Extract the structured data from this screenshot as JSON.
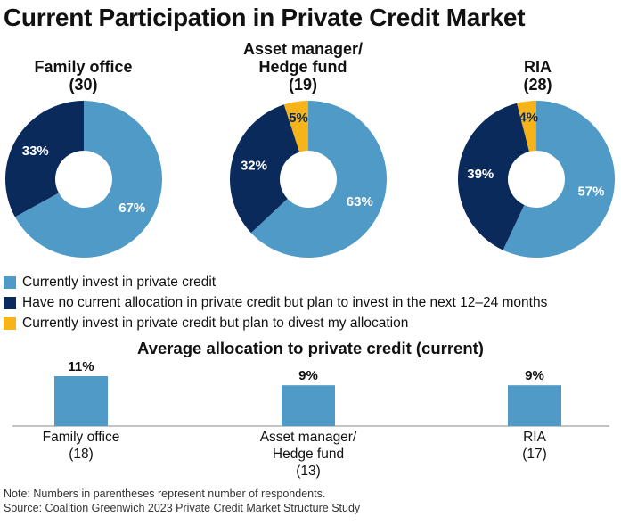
{
  "title": "Current Participation in Private Credit Market",
  "colors": {
    "invest": "#4f9ac6",
    "plan": "#0b2a5c",
    "divest": "#f6b41a",
    "bar": "#4f9ac6"
  },
  "groups": [
    {
      "name": "Family office",
      "count": "(30)"
    },
    {
      "name_line1": "Asset manager/",
      "name_line2": "Hedge fund",
      "count": "(19)"
    },
    {
      "name": "RIA",
      "count": "(28)"
    }
  ],
  "legend": [
    {
      "label": "Currently invest in private credit",
      "color_key": "invest"
    },
    {
      "label": "Have no current allocation in private credit but plan to invest in the next 12–24 months",
      "color_key": "plan"
    },
    {
      "label": "Currently invest in private credit but plan to divest my allocation",
      "color_key": "divest"
    }
  ],
  "bar_section": {
    "title": "Average allocation to private credit (current)",
    "categories": [
      {
        "line1": "Family office",
        "line2": "(18)"
      },
      {
        "line1": "Asset manager/",
        "line2": "Hedge fund",
        "line3": "(13)"
      },
      {
        "line1": "RIA",
        "line2": "(17)"
      }
    ]
  },
  "footnote": {
    "note": "Note: Numbers in parentheses represent number of respondents.",
    "source": "Source: Coalition Greenwich 2023 Private Credit Market Structure Study"
  },
  "chart_data": [
    {
      "type": "pie",
      "title": "Family office (30)",
      "categories": [
        "Currently invest in private credit",
        "Have no current allocation in private credit but plan to invest in the next 12–24 months",
        "Currently invest in private credit but plan to divest my allocation"
      ],
      "values": [
        67,
        33,
        0
      ],
      "labels": [
        "67%",
        "33%",
        ""
      ]
    },
    {
      "type": "pie",
      "title": "Asset manager/ Hedge fund (19)",
      "categories": [
        "Currently invest in private credit",
        "Have no current allocation in private credit but plan to invest in the next 12–24 months",
        "Currently invest in private credit but plan to divest my allocation"
      ],
      "values": [
        63,
        32,
        5
      ],
      "labels": [
        "63%",
        "32%",
        "5%"
      ]
    },
    {
      "type": "pie",
      "title": "RIA (28)",
      "categories": [
        "Currently invest in private credit",
        "Have no current allocation in private credit but plan to invest in the next 12–24 months",
        "Currently invest in private credit but plan to divest my allocation"
      ],
      "values": [
        57,
        39,
        4
      ],
      "labels": [
        "57%",
        "39%",
        "4%"
      ]
    },
    {
      "type": "bar",
      "title": "Average allocation to private credit (current)",
      "categories": [
        "Family office (18)",
        "Asset manager/ Hedge fund (13)",
        "RIA (17)"
      ],
      "values": [
        11,
        9,
        9
      ],
      "labels": [
        "11%",
        "9%",
        "9%"
      ]
    }
  ]
}
